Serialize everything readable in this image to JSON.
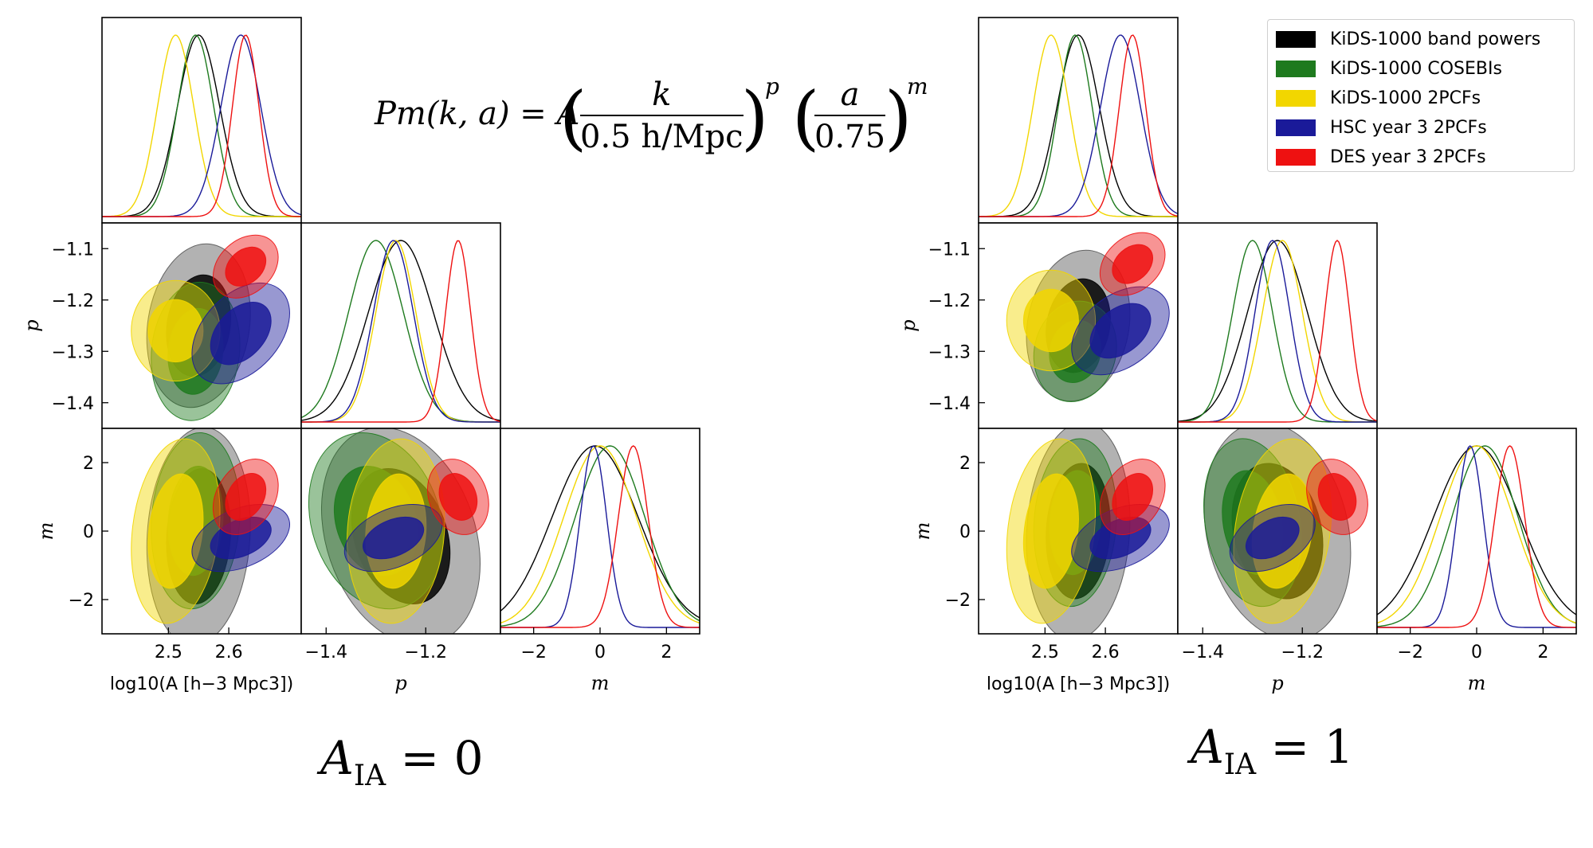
{
  "formula": {
    "lhs": "Pm(k, a) = A",
    "k": "k",
    "k_den": "0.5 h/Mpc",
    "p": "p",
    "a": "a",
    "a_den": "0.75",
    "m": "m"
  },
  "colors": {
    "kids_bp": "#000000",
    "kids_cosebis": "#1e7a1e",
    "kids_2pcf": "#f2d600",
    "hsc": "#1a1a99",
    "des": "#ee1111"
  },
  "legend": [
    {
      "label": "KiDS-1000 band powers",
      "color": "#000000"
    },
    {
      "label": "KiDS-1000 COSEBIs",
      "color": "#1e7a1e"
    },
    {
      "label": "KiDS-1000 2PCFs",
      "color": "#f2d600"
    },
    {
      "label": "HSC year 3 2PCFs",
      "color": "#1a1a99"
    },
    {
      "label": "DES year 3 2PCFs",
      "color": "#ee1111"
    }
  ],
  "panel_titles": {
    "left": {
      "A": "A",
      "IA": "IA",
      "eq": "= 0"
    },
    "right": {
      "A": "A",
      "IA": "IA",
      "eq": "= 1"
    }
  },
  "chart_data": [
    {
      "type": "corner",
      "title": "A_IA = 0",
      "parameters": [
        "log10(A [h^-3 Mpc^3])",
        "p",
        "m"
      ],
      "axis_labels": {
        "logA": "log10(A [h−3 Mpc3])",
        "p": "p",
        "m": "m"
      },
      "ranges": {
        "logA": [
          2.39,
          2.72
        ],
        "p": [
          -1.45,
          -1.05
        ],
        "m": [
          -3,
          3
        ]
      },
      "ticks": {
        "logA": [
          2.5,
          2.6
        ],
        "p": [
          -1.4,
          -1.3,
          -1.2,
          -1.1
        ],
        "p_x": [
          -1.4,
          -1.2
        ],
        "m": [
          -2,
          0,
          2
        ]
      },
      "tick_labels": {
        "logA": [
          "2.5",
          "2.6"
        ],
        "p": [
          "−1.4",
          "−1.3",
          "−1.2",
          "−1.1"
        ],
        "p_x": [
          "−1.4",
          "−1.2"
        ],
        "m": [
          "−2",
          "0",
          "2"
        ]
      },
      "series": [
        {
          "name": "KiDS-1000 band powers",
          "logA": [
            2.55,
            0.035
          ],
          "p": [
            -1.25,
            0.065
          ],
          "m": [
            -0.15,
            1.3
          ],
          "rho_logA_p": 0.15,
          "rho_logA_m": 0.1,
          "rho_p_m": -0.25
        },
        {
          "name": "KiDS-1000 COSEBIs",
          "logA": [
            2.545,
            0.03
          ],
          "p": [
            -1.3,
            0.055
          ],
          "m": [
            0.3,
            1.05
          ],
          "rho_logA_p": 0.1,
          "rho_logA_m": 0.1,
          "rho_p_m": -0.2
        },
        {
          "name": "KiDS-1000 2PCFs",
          "logA": [
            2.512,
            0.03
          ],
          "p": [
            -1.26,
            0.04
          ],
          "m": [
            0.0,
            1.1
          ],
          "rho_logA_p": 0.0,
          "rho_logA_m": 0.2,
          "rho_p_m": 0.1
        },
        {
          "name": "HSC year 3 2PCFs",
          "logA": [
            2.62,
            0.033
          ],
          "p": [
            -1.265,
            0.04
          ],
          "m": [
            -0.2,
            0.4
          ],
          "rho_logA_p": 0.4,
          "rho_logA_m": 0.4,
          "rho_p_m": 0.4
        },
        {
          "name": "DES year 3 2PCFs",
          "logA": [
            2.628,
            0.022
          ],
          "p": [
            -1.135,
            0.025
          ],
          "m": [
            1.0,
            0.45
          ],
          "rho_logA_p": 0.3,
          "rho_logA_m": 0.3,
          "rho_p_m": -0.2
        }
      ]
    },
    {
      "type": "corner",
      "title": "A_IA = 1",
      "parameters": [
        "log10(A [h^-3 Mpc^3])",
        "p",
        "m"
      ],
      "axis_labels": {
        "logA": "log10(A [h−3 Mpc3])",
        "p": "p",
        "m": "m"
      },
      "ranges": {
        "logA": [
          2.39,
          2.72
        ],
        "p": [
          -1.45,
          -1.05
        ],
        "m": [
          -3,
          3
        ]
      },
      "ticks": {
        "logA": [
          2.5,
          2.6
        ],
        "p": [
          -1.4,
          -1.3,
          -1.2,
          -1.1
        ],
        "p_x": [
          -1.4,
          -1.2
        ],
        "m": [
          -2,
          0,
          2
        ]
      },
      "tick_labels": {
        "logA": [
          "2.5",
          "2.6"
        ],
        "p": [
          "−1.4",
          "−1.3",
          "−1.2",
          "−1.1"
        ],
        "p_x": [
          "−1.4",
          "−1.2"
        ],
        "m": [
          "−2",
          "0",
          "2"
        ]
      },
      "series": [
        {
          "name": "KiDS-1000 band powers",
          "logA": [
            2.555,
            0.035
          ],
          "p": [
            -1.25,
            0.06
          ],
          "m": [
            0.0,
            1.3
          ],
          "rho_logA_p": 0.15,
          "rho_logA_m": 0.1,
          "rho_p_m": -0.2
        },
        {
          "name": "KiDS-1000 COSEBIs",
          "logA": [
            2.55,
            0.028
          ],
          "p": [
            -1.3,
            0.04
          ],
          "m": [
            0.25,
            1.0
          ],
          "rho_logA_p": 0.1,
          "rho_logA_m": 0.1,
          "rho_p_m": -0.2
        },
        {
          "name": "KiDS-1000 2PCFs",
          "logA": [
            2.51,
            0.03
          ],
          "p": [
            -1.24,
            0.04
          ],
          "m": [
            0.0,
            1.1
          ],
          "rho_logA_p": 0.0,
          "rho_logA_m": 0.2,
          "rho_p_m": 0.2
        },
        {
          "name": "HSC year 3 2PCFs",
          "logA": [
            2.625,
            0.033
          ],
          "p": [
            -1.26,
            0.035
          ],
          "m": [
            -0.2,
            0.4
          ],
          "rho_logA_p": 0.4,
          "rho_logA_m": 0.4,
          "rho_p_m": 0.4
        },
        {
          "name": "DES year 3 2PCFs",
          "logA": [
            2.645,
            0.022
          ],
          "p": [
            -1.13,
            0.025
          ],
          "m": [
            1.0,
            0.45
          ],
          "rho_logA_p": 0.3,
          "rho_logA_m": 0.3,
          "rho_p_m": -0.2
        }
      ]
    }
  ]
}
